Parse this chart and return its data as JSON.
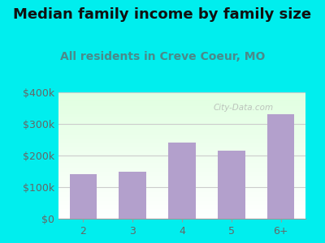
{
  "title": "Median family income by family size",
  "subtitle": "All residents in Creve Coeur, MO",
  "categories": [
    "2",
    "3",
    "4",
    "5",
    "6+"
  ],
  "values": [
    140000,
    150000,
    240000,
    215000,
    330000
  ],
  "bar_color": "#b3a0cc",
  "background_outer": "#00eeee",
  "ylim": [
    0,
    400000
  ],
  "yticks": [
    0,
    100000,
    200000,
    300000,
    400000
  ],
  "ytick_labels": [
    "$0",
    "$100k",
    "$200k",
    "$300k",
    "$400k"
  ],
  "title_fontsize": 13,
  "subtitle_fontsize": 10,
  "title_color": "#111111",
  "subtitle_color": "#4a8a8a",
  "tick_color": "#666666",
  "watermark": "City-Data.com",
  "grid_color": "#cccccc"
}
